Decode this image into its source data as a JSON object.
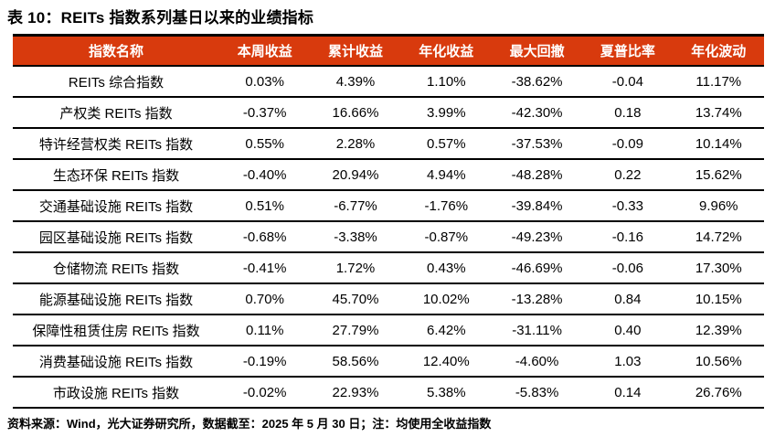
{
  "title": "表 10：REITs 指数系列基日以来的业绩指标",
  "colors": {
    "header_bg": "#D83A0D",
    "header_text": "#FFFFFF",
    "body_text": "#000000",
    "rule": "#000000"
  },
  "table": {
    "columns": [
      "指数名称",
      "本周收益",
      "累计收益",
      "年化收益",
      "最大回撤",
      "夏普比率",
      "年化波动"
    ],
    "rows": [
      [
        "REITs 综合指数",
        "0.03%",
        "4.39%",
        "1.10%",
        "-38.62%",
        "-0.04",
        "11.17%"
      ],
      [
        "产权类 REITs 指数",
        "-0.37%",
        "16.66%",
        "3.99%",
        "-42.30%",
        "0.18",
        "13.74%"
      ],
      [
        "特许经营权类 REITs 指数",
        "0.55%",
        "2.28%",
        "0.57%",
        "-37.53%",
        "-0.09",
        "10.14%"
      ],
      [
        "生态环保 REITs 指数",
        "-0.40%",
        "20.94%",
        "4.94%",
        "-48.28%",
        "0.22",
        "15.62%"
      ],
      [
        "交通基础设施 REITs 指数",
        "0.51%",
        "-6.77%",
        "-1.76%",
        "-39.84%",
        "-0.33",
        "9.96%"
      ],
      [
        "园区基础设施 REITs 指数",
        "-0.68%",
        "-3.38%",
        "-0.87%",
        "-49.23%",
        "-0.16",
        "14.72%"
      ],
      [
        "仓储物流 REITs 指数",
        "-0.41%",
        "1.72%",
        "0.43%",
        "-46.69%",
        "-0.06",
        "17.30%"
      ],
      [
        "能源基础设施 REITs 指数",
        "0.70%",
        "45.70%",
        "10.02%",
        "-13.28%",
        "0.84",
        "10.15%"
      ],
      [
        "保障性租赁住房 REITs 指数",
        "0.11%",
        "27.79%",
        "6.42%",
        "-31.11%",
        "0.40",
        "12.39%"
      ],
      [
        "消费基础设施 REITs 指数",
        "-0.19%",
        "58.56%",
        "12.40%",
        "-4.60%",
        "1.03",
        "10.56%"
      ],
      [
        "市政设施 REITs 指数",
        "-0.02%",
        "22.93%",
        "5.38%",
        "-5.83%",
        "0.14",
        "26.76%"
      ]
    ]
  },
  "footer": {
    "source_note": "资料来源：Wind，光大证券研究所，数据截至：2025 年 5 月 30 日；注：均使用全收益指数"
  }
}
